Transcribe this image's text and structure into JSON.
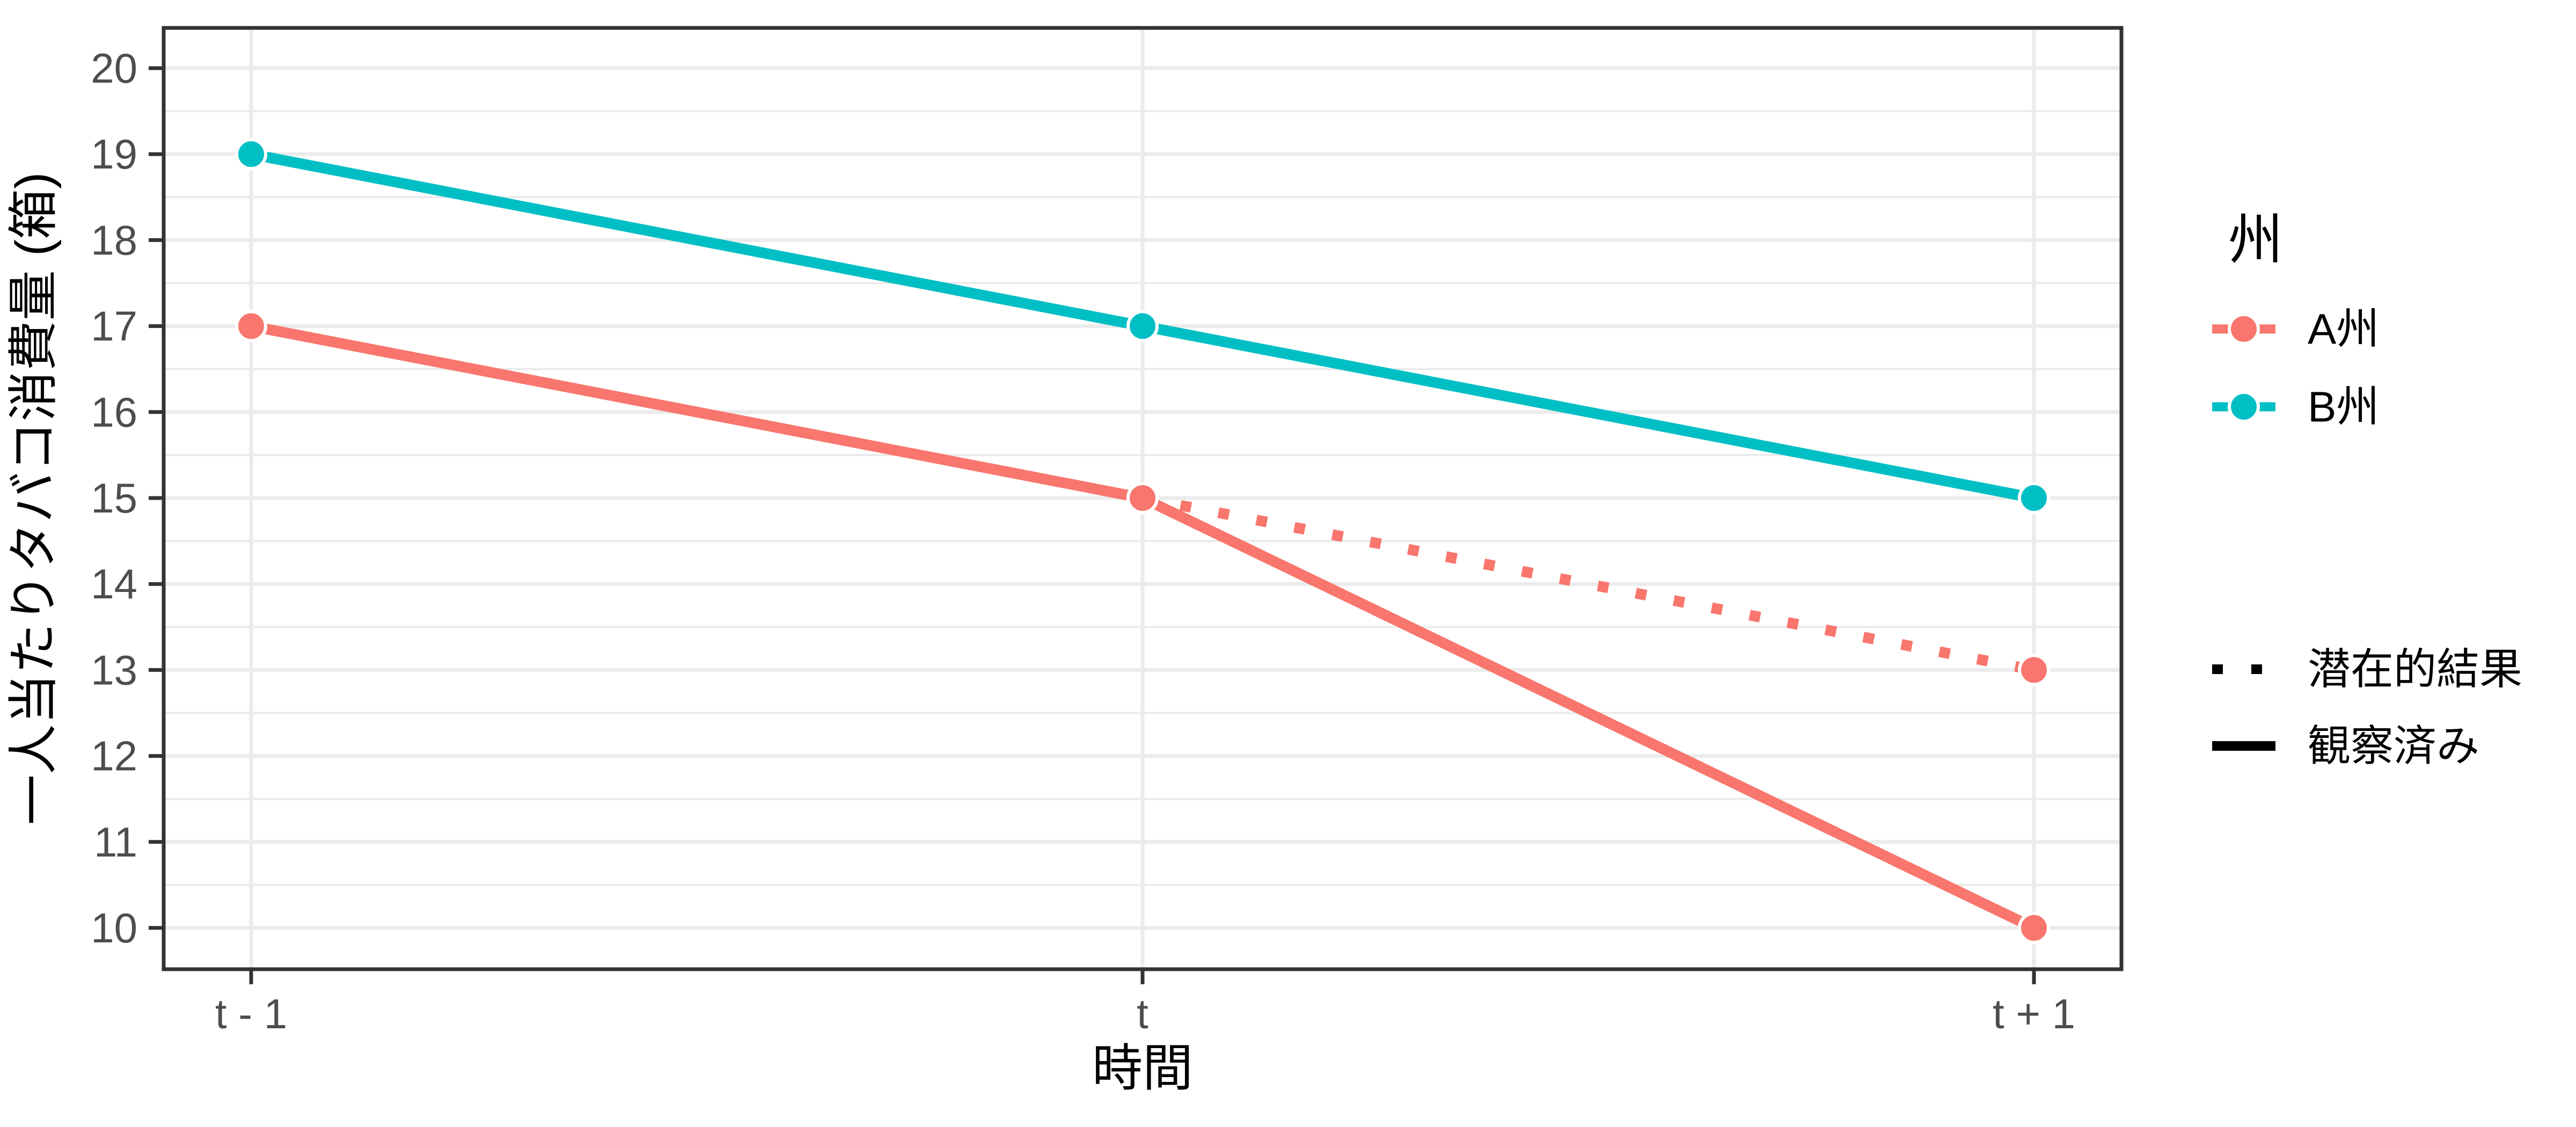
{
  "figure": {
    "background": "#ffffff"
  },
  "colors": {
    "series_a": "#F8766D",
    "series_b": "#00BFC4",
    "grid": "#EBEBEB",
    "panel_border": "#333333",
    "tick_mark": "#333333",
    "tick_text": "#4d4d4d",
    "black": "#000000",
    "point_halo": "#ffffff"
  },
  "chart_data": {
    "type": "line",
    "title": "",
    "xlabel": "時間",
    "ylabel": "一人当たりタバコ消費量 (箱)",
    "categories": [
      "t - 1",
      "t",
      "t + 1"
    ],
    "y_ticks": [
      10,
      11,
      12,
      13,
      14,
      15,
      16,
      17,
      18,
      19,
      20
    ],
    "ylim": [
      9.5,
      20.5
    ],
    "grid": "horizontal major and minor, vertical major at categories",
    "legend_position": "right",
    "series": [
      {
        "name": "B州",
        "color": "#00BFC4",
        "linetype": "solid",
        "category_indices": [
          0,
          1,
          2
        ],
        "values": [
          19,
          17,
          15
        ]
      },
      {
        "name": "A州",
        "color": "#F8766D",
        "linetype": "solid",
        "category_indices": [
          0,
          1,
          2
        ],
        "values": [
          17,
          15,
          10
        ]
      },
      {
        "name": "A州 (潜在的結果)",
        "color": "#F8766D",
        "linetype": "dotted",
        "category_indices": [
          1,
          2
        ],
        "values": [
          15,
          13
        ]
      }
    ]
  },
  "legend": {
    "color": {
      "title": "州",
      "items": [
        {
          "label": "A州",
          "color": "#F8766D"
        },
        {
          "label": "B州",
          "color": "#00BFC4"
        }
      ]
    },
    "linetype": {
      "items": [
        {
          "label": "潜在的結果",
          "linetype": "dotted"
        },
        {
          "label": "観察済み",
          "linetype": "solid"
        }
      ]
    }
  }
}
